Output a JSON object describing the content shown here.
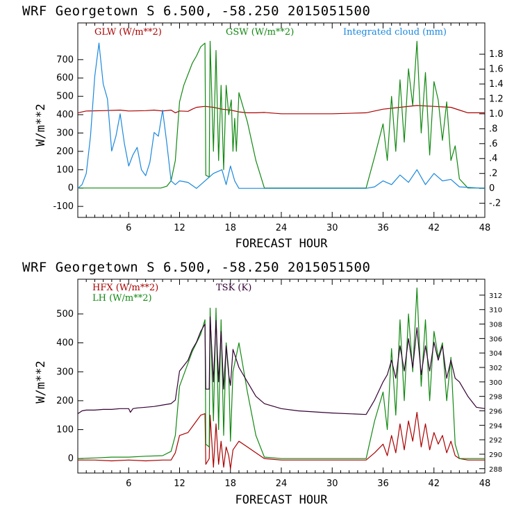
{
  "chart_data": [
    {
      "type": "line",
      "title": "WRF   Georgetown S   6.500, -58.250  2015051500",
      "xlabel": "FORECAST HOUR",
      "ylabel": "W/m**2",
      "xlim": [
        0,
        48
      ],
      "ylim": [
        -160,
        900
      ],
      "y2lim": [
        -0.39,
        2.22
      ],
      "xticks": [
        "6",
        "12",
        "18",
        "24",
        "30",
        "36",
        "42",
        "48"
      ],
      "yticks": [
        "-100",
        "0",
        "100",
        "200",
        "300",
        "400",
        "500",
        "600",
        "700"
      ],
      "y2ticks": [
        "-.2",
        "0",
        ".2",
        ".4",
        ".6",
        ".8",
        "1.0",
        "1.2",
        "1.4",
        "1.6",
        "1.8"
      ],
      "legend_placement": "top",
      "series": [
        {
          "name": "GLW (W/m**2)",
          "color": "#aa0000",
          "axis": "left",
          "x": [
            0,
            1,
            3,
            5,
            6,
            8,
            9,
            10,
            11,
            11.5,
            12,
            13,
            13.5,
            14,
            15,
            16,
            17,
            18,
            19,
            20,
            21,
            22,
            24,
            26,
            30,
            34,
            36,
            38,
            40,
            42,
            44,
            45,
            46,
            48
          ],
          "y": [
            410,
            420,
            422,
            425,
            420,
            422,
            425,
            420,
            425,
            410,
            420,
            418,
            430,
            440,
            445,
            440,
            430,
            425,
            415,
            410,
            410,
            412,
            405,
            405,
            405,
            410,
            430,
            440,
            450,
            445,
            440,
            425,
            410,
            410
          ]
        },
        {
          "name": "GSW (W/m**2)",
          "color": "#118811",
          "axis": "left",
          "x": [
            0,
            9.8,
            10.5,
            11,
            11.5,
            12,
            12.5,
            13,
            13.5,
            14,
            14.5,
            15,
            15.1,
            15.5,
            15.6,
            16,
            16.3,
            16.6,
            16.9,
            17.2,
            17.5,
            17.8,
            18.1,
            18.3,
            18.5,
            18.7,
            19,
            20,
            21,
            22,
            34,
            35,
            36,
            36.5,
            37,
            37.5,
            38,
            38.5,
            39,
            39.5,
            40,
            40.5,
            41,
            41.5,
            42,
            42.5,
            43,
            43.5,
            44,
            44.5,
            45,
            46,
            48
          ],
          "y": [
            0,
            0,
            10,
            40,
            150,
            470,
            560,
            620,
            680,
            720,
            770,
            790,
            70,
            60,
            800,
            200,
            750,
            150,
            560,
            100,
            560,
            400,
            480,
            200,
            380,
            200,
            520,
            360,
            150,
            0,
            0,
            170,
            350,
            150,
            500,
            200,
            590,
            250,
            650,
            450,
            800,
            300,
            630,
            180,
            580,
            480,
            260,
            470,
            150,
            230,
            50,
            0,
            0
          ]
        },
        {
          "name": "Integrated cloud (mm)",
          "color": "#1a88dd",
          "axis": "right",
          "x": [
            0,
            0.5,
            1,
            1.5,
            2,
            2.5,
            3,
            3.5,
            4,
            4.5,
            5,
            5.5,
            6,
            6.5,
            7,
            7.5,
            8,
            8.5,
            9,
            9.5,
            10,
            10.5,
            11,
            11.5,
            12,
            13,
            14,
            15,
            16,
            17,
            17.5,
            18,
            18.5,
            19,
            34,
            35,
            36,
            37,
            38,
            39,
            40,
            41,
            42,
            43,
            44,
            45,
            48
          ],
          "y": [
            0,
            0.05,
            0.2,
            0.7,
            1.5,
            1.95,
            1.4,
            1.2,
            0.5,
            0.7,
            1.0,
            0.6,
            0.3,
            0.45,
            0.55,
            0.25,
            0.17,
            0.35,
            0.75,
            0.7,
            1.05,
            0.6,
            0.1,
            0.05,
            0.1,
            0.08,
            0.0,
            0.1,
            0.2,
            0.25,
            0.05,
            0.3,
            0.1,
            0.0,
            0.0,
            0.02,
            0.1,
            0.05,
            0.18,
            0.08,
            0.25,
            0.05,
            0.2,
            0.1,
            0.12,
            0.02,
            0.0
          ]
        }
      ]
    },
    {
      "type": "line",
      "title": "WRF   Georgetown S   6.500, -58.250  2015051500",
      "xlabel": "FORECAST HOUR",
      "ylabel": "W/m**2",
      "xlim": [
        0,
        48
      ],
      "ylim": [
        -50,
        620
      ],
      "y2lim": [
        287.4,
        314.2
      ],
      "xticks": [
        "6",
        "12",
        "18",
        "24",
        "30",
        "36",
        "42",
        "48"
      ],
      "yticks": [
        "0",
        "100",
        "200",
        "300",
        "400",
        "500"
      ],
      "y2ticks": [
        "288",
        "290",
        "292",
        "294",
        "296",
        "298",
        "300",
        "302",
        "304",
        "306",
        "308",
        "310",
        "312"
      ],
      "legend_placement": "top",
      "series": [
        {
          "name": "HFX (W/m**2)",
          "color": "#aa0000",
          "axis": "left",
          "x": [
            0,
            2,
            4,
            6,
            8,
            10,
            11,
            11.5,
            12,
            13,
            13.5,
            14,
            14.5,
            15,
            15.1,
            15.5,
            15.6,
            16,
            16.3,
            16.6,
            16.9,
            17.2,
            17.5,
            17.8,
            18,
            18.3,
            19,
            20,
            21,
            22,
            24,
            34,
            35,
            36,
            36.5,
            37,
            37.5,
            38,
            38.5,
            39,
            39.5,
            40,
            40.5,
            41,
            41.5,
            42,
            42.5,
            43,
            43.5,
            44,
            44.5,
            45,
            46,
            48
          ],
          "y": [
            -5,
            -5,
            -8,
            -5,
            -8,
            -5,
            -5,
            20,
            80,
            90,
            110,
            130,
            150,
            155,
            -20,
            0,
            150,
            -30,
            120,
            -20,
            60,
            -30,
            40,
            10,
            -35,
            30,
            60,
            40,
            20,
            0,
            -5,
            -5,
            20,
            50,
            10,
            80,
            20,
            120,
            30,
            130,
            60,
            160,
            40,
            120,
            30,
            90,
            50,
            80,
            20,
            60,
            10,
            0,
            -5,
            -5
          ]
        },
        {
          "name": "LH (W/m**2)",
          "color": "#118811",
          "axis": "left",
          "x": [
            0,
            2,
            4,
            6,
            8,
            10,
            11,
            11.5,
            12,
            13,
            13.5,
            14,
            14.5,
            15,
            15.1,
            15.5,
            15.6,
            16,
            16.3,
            16.6,
            16.9,
            17.2,
            17.5,
            17.8,
            18,
            18.3,
            19,
            20,
            21,
            22,
            24,
            34,
            35,
            36,
            36.5,
            37,
            37.5,
            38,
            38.5,
            39,
            39.5,
            40,
            40.5,
            41,
            41.5,
            42,
            42.5,
            43,
            43.5,
            44,
            44.5,
            45,
            46,
            48
          ],
          "y": [
            0,
            2,
            5,
            5,
            8,
            10,
            25,
            80,
            250,
            330,
            370,
            400,
            430,
            480,
            50,
            40,
            520,
            130,
            520,
            100,
            480,
            80,
            400,
            300,
            60,
            300,
            400,
            230,
            80,
            5,
            0,
            0,
            130,
            230,
            100,
            380,
            150,
            480,
            200,
            500,
            300,
            590,
            250,
            480,
            200,
            440,
            350,
            400,
            200,
            350,
            50,
            0,
            0,
            0
          ]
        },
        {
          "name": "TSK (K)",
          "color": "#330033",
          "axis": "right",
          "x": [
            0,
            0.5,
            1,
            2,
            3,
            4,
            5,
            6,
            6.2,
            6.5,
            7,
            8,
            9,
            10,
            11,
            11.5,
            12,
            13,
            13.5,
            14,
            14.5,
            15,
            15.1,
            15.5,
            15.6,
            16,
            16.3,
            16.6,
            16.9,
            17.2,
            17.5,
            17.8,
            18,
            18.3,
            19,
            20,
            21,
            22,
            24,
            26,
            30,
            34,
            35,
            36,
            36.5,
            37,
            37.5,
            38,
            38.5,
            39,
            39.5,
            40,
            40.5,
            41,
            41.5,
            42,
            42.5,
            43,
            43.5,
            44,
            44.5,
            45,
            46,
            47,
            48
          ],
          "y": [
            295.6,
            296.0,
            296.1,
            296.1,
            296.2,
            296.2,
            296.3,
            296.3,
            295.8,
            296.3,
            296.4,
            296.5,
            296.6,
            296.8,
            297.0,
            297.5,
            301.5,
            303.0,
            304.5,
            305.5,
            307.0,
            308.0,
            299.0,
            299.0,
            309.0,
            300.0,
            308.5,
            300.0,
            307.0,
            299.0,
            305.0,
            301.0,
            299.5,
            304.5,
            302.0,
            300.0,
            298.0,
            297.0,
            296.3,
            296.0,
            295.7,
            295.5,
            297.5,
            300.0,
            301.0,
            303.0,
            300.5,
            305.0,
            301.5,
            306.0,
            302.0,
            307.5,
            301.0,
            305.0,
            301.5,
            305.5,
            303.0,
            305.0,
            300.5,
            303.0,
            300.5,
            300.0,
            298.0,
            296.5,
            296.3
          ]
        }
      ]
    }
  ],
  "panels": [
    {
      "title": "WRF   Georgetown S   6.500, -58.250  2015051500",
      "xlabel": "FORECAST HOUR",
      "ylabel": "W/m**2",
      "legend": [
        "GLW (W/m**2)",
        "GSW (W/m**2)",
        "Integrated cloud (mm)"
      ]
    },
    {
      "title": "WRF   Georgetown S   6.500, -58.250  2015051500",
      "xlabel": "FORECAST HOUR",
      "ylabel": "W/m**2",
      "legend": [
        "HFX (W/m**2)",
        "LH (W/m**2)",
        "TSK (K)"
      ]
    }
  ]
}
